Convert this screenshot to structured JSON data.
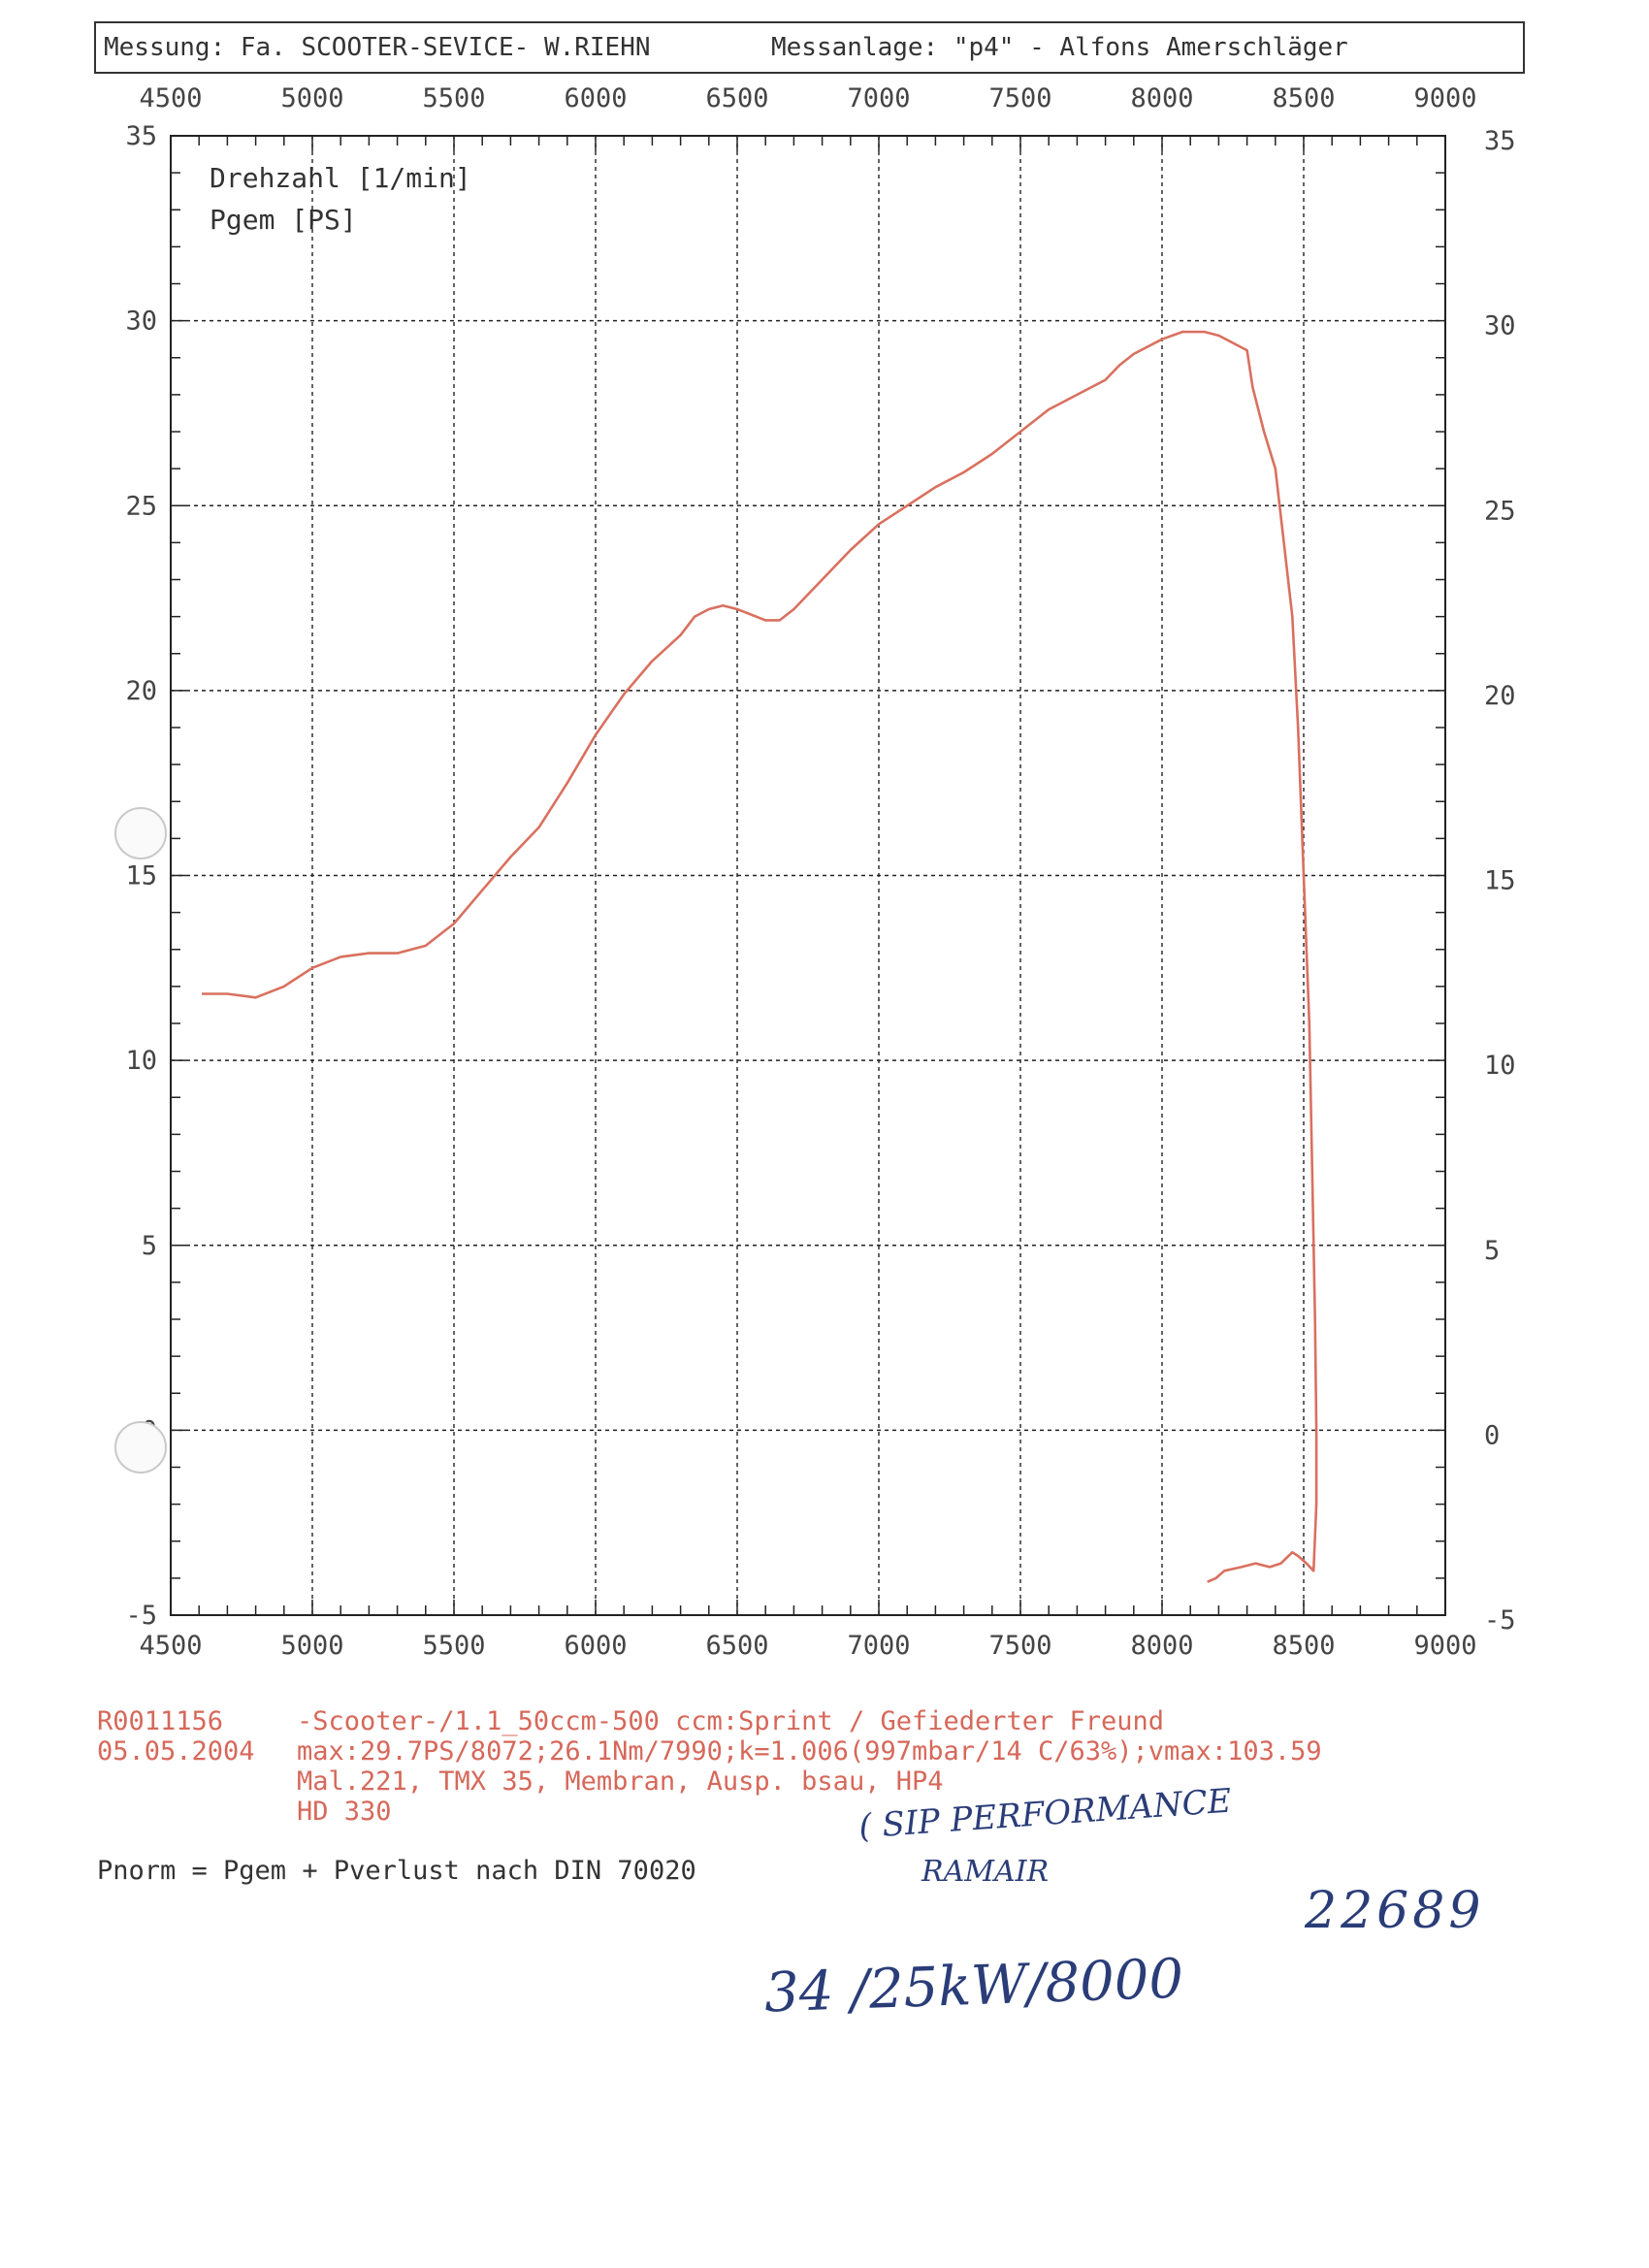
{
  "header": {
    "measurement": "Messung: Fa. SCOOTER-SEVICE- W.RIEHN",
    "facility": "Messanlage: \"p4\" - Alfons Amerschläger"
  },
  "legend": {
    "line1": "Drehzahl [1/min]",
    "line2": "Pgem [PS]"
  },
  "info": {
    "code": "R0011156",
    "date": "05.05.2004",
    "line1": "-Scooter-/1.1_50ccm-500 ccm:Sprint / Gefiederter Freund",
    "line2": "max:29.7PS/8072;26.1Nm/7990;k=1.006(997mbar/14 C/63%);vmax:103.59",
    "line3": "Mal.221, TMX 35, Membran, Ausp. bsau, HP4",
    "line4": "HD 330"
  },
  "footnote": "Pnorm = Pgem + Pverlust nach DIN 70020",
  "handwriting": {
    "note1": "( SIP PERFORMANCE",
    "note2": "RAMAIR",
    "number": "22689",
    "result": "34 /25kW/8000"
  },
  "colors": {
    "curve": "#d9705f",
    "grid": "#222222",
    "info_text": "#d6685a",
    "handwriting": "#2a3d78"
  },
  "chart_data": {
    "type": "line",
    "title": "",
    "xlabel": "Drehzahl [1/min]",
    "ylabel": "Pgem [PS]",
    "xlim": [
      4500,
      9000
    ],
    "ylim": [
      -5,
      35
    ],
    "x_ticks": [
      "4500",
      "5000",
      "5500",
      "6000",
      "6500",
      "7000",
      "7500",
      "8000",
      "8500",
      "9000"
    ],
    "y_ticks": [
      "35",
      "30",
      "25",
      "20",
      "15",
      "10",
      "5",
      "0",
      "-5"
    ],
    "grid": true,
    "series": [
      {
        "name": "Pgem [PS]",
        "points": [
          [
            4610,
            11.8
          ],
          [
            4700,
            11.8
          ],
          [
            4800,
            11.7
          ],
          [
            4900,
            12.0
          ],
          [
            5000,
            12.5
          ],
          [
            5100,
            12.8
          ],
          [
            5200,
            12.9
          ],
          [
            5300,
            12.9
          ],
          [
            5400,
            13.1
          ],
          [
            5500,
            13.7
          ],
          [
            5600,
            14.6
          ],
          [
            5700,
            15.5
          ],
          [
            5800,
            16.3
          ],
          [
            5900,
            17.5
          ],
          [
            6000,
            18.8
          ],
          [
            6100,
            19.9
          ],
          [
            6200,
            20.8
          ],
          [
            6300,
            21.5
          ],
          [
            6350,
            22.0
          ],
          [
            6400,
            22.2
          ],
          [
            6450,
            22.3
          ],
          [
            6500,
            22.2
          ],
          [
            6600,
            21.9
          ],
          [
            6650,
            21.9
          ],
          [
            6700,
            22.2
          ],
          [
            6800,
            23.0
          ],
          [
            6900,
            23.8
          ],
          [
            7000,
            24.5
          ],
          [
            7100,
            25.0
          ],
          [
            7200,
            25.5
          ],
          [
            7300,
            25.9
          ],
          [
            7400,
            26.4
          ],
          [
            7500,
            27.0
          ],
          [
            7600,
            27.6
          ],
          [
            7700,
            28.0
          ],
          [
            7800,
            28.4
          ],
          [
            7850,
            28.8
          ],
          [
            7900,
            29.1
          ],
          [
            8000,
            29.5
          ],
          [
            8072,
            29.7
          ],
          [
            8150,
            29.7
          ],
          [
            8200,
            29.6
          ],
          [
            8250,
            29.4
          ],
          [
            8300,
            29.2
          ],
          [
            8320,
            28.2
          ],
          [
            8360,
            27.0
          ],
          [
            8400,
            26.0
          ],
          [
            8430,
            24.0
          ],
          [
            8460,
            22.0
          ],
          [
            8480,
            19.0
          ],
          [
            8500,
            15.0
          ],
          [
            8520,
            11.0
          ],
          [
            8530,
            7.0
          ],
          [
            8540,
            3.0
          ],
          [
            8545,
            0.0
          ],
          [
            8545,
            -2.0
          ],
          [
            8535,
            -3.8
          ],
          [
            8510,
            -3.6
          ],
          [
            8480,
            -3.4
          ],
          [
            8460,
            -3.3
          ],
          [
            8420,
            -3.6
          ],
          [
            8380,
            -3.7
          ],
          [
            8330,
            -3.6
          ],
          [
            8280,
            -3.7
          ],
          [
            8220,
            -3.8
          ],
          [
            8190,
            -4.0
          ],
          [
            8160,
            -4.1
          ]
        ]
      }
    ]
  }
}
